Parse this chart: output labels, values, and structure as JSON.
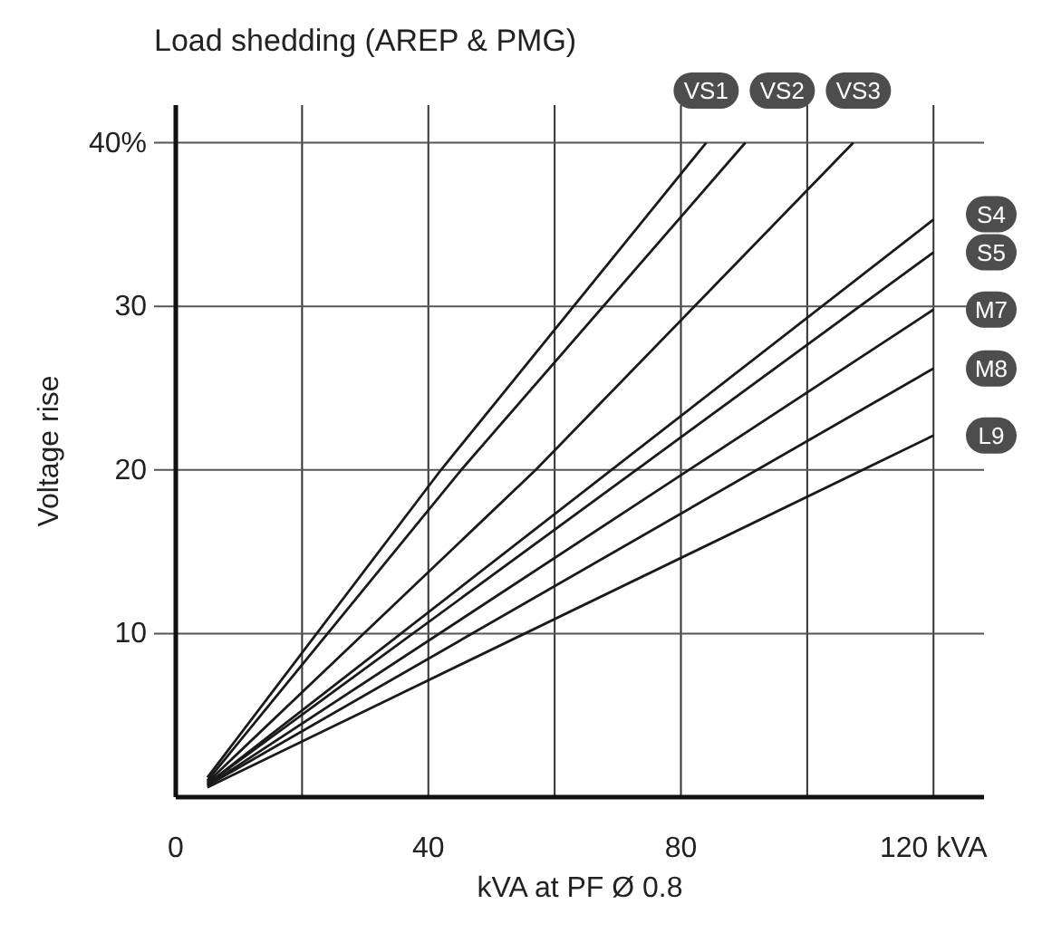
{
  "chart_data": {
    "type": "line",
    "title": "Load shedding (AREP & PMG)",
    "xlabel": "kVA at PF Ø 0.8",
    "ylabel": "Voltage rise",
    "xlim": [
      0,
      128
    ],
    "ylim": [
      0,
      42.3
    ],
    "xticks": [
      0,
      {
        "value": 20,
        "label": null
      },
      40,
      {
        "value": 60,
        "label": null
      },
      80,
      {
        "value": 100,
        "label": null
      },
      {
        "value": 120,
        "label": "120 kVA"
      }
    ],
    "yticks": [
      10,
      20,
      30,
      {
        "value": 40,
        "label": "40%"
      }
    ],
    "grid": true,
    "line_style": "solid",
    "series": [
      {
        "name": "VS1",
        "color": "#1a1a1a",
        "x": [
          5,
          42,
          84
        ],
        "values": [
          1.2,
          20,
          40
        ]
      },
      {
        "name": "VS2",
        "color": "#1a1a1a",
        "x": [
          5,
          45.2,
          90.2
        ],
        "values": [
          1,
          20,
          40
        ]
      },
      {
        "name": "VS3",
        "color": "#1a1a1a",
        "x": [
          5,
          57,
          107.3
        ],
        "values": [
          0.9,
          20,
          40
        ]
      },
      {
        "name": "S4",
        "color": "#1a1a1a",
        "x": [
          5,
          120
        ],
        "values": [
          0.8,
          35.3
        ]
      },
      {
        "name": "S5",
        "color": "#1a1a1a",
        "x": [
          5,
          120
        ],
        "values": [
          0.8,
          33.3
        ]
      },
      {
        "name": "M7",
        "color": "#1a1a1a",
        "x": [
          5,
          120
        ],
        "values": [
          0.7,
          29.8
        ]
      },
      {
        "name": "M8",
        "color": "#1a1a1a",
        "x": [
          5,
          120
        ],
        "values": [
          0.7,
          26.2
        ]
      },
      {
        "name": "L9",
        "color": "#1a1a1a",
        "x": [
          5,
          120
        ],
        "values": [
          0.6,
          22.1
        ]
      }
    ]
  }
}
